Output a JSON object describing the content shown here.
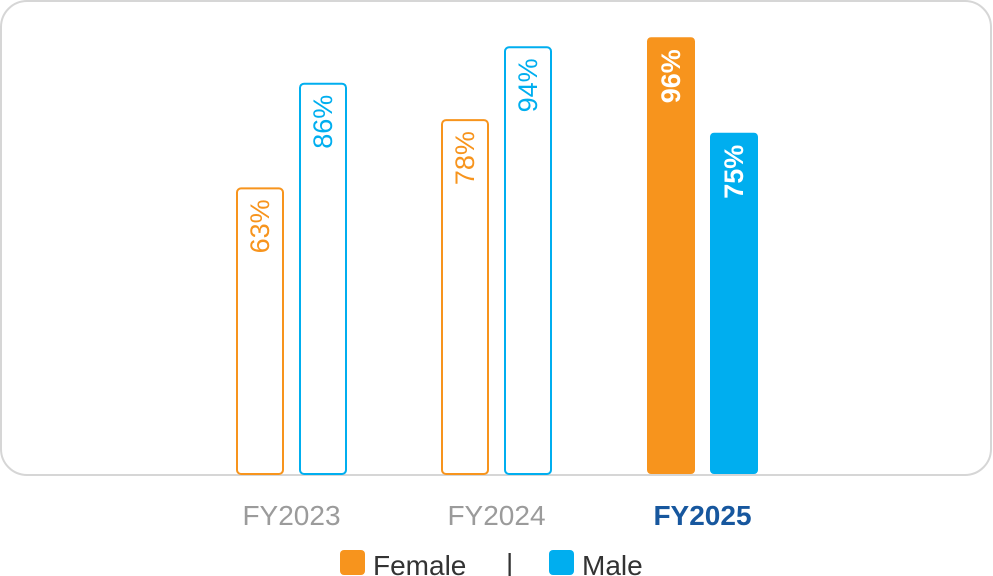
{
  "chart_data": {
    "type": "bar",
    "categories": [
      "FY2023",
      "FY2024",
      "FY2025"
    ],
    "highlight_category": "FY2025",
    "series": [
      {
        "name": "Female",
        "color": "#f7941d",
        "values": [
          63,
          78,
          96
        ],
        "labels": [
          "63%",
          "78%",
          "96%"
        ]
      },
      {
        "name": "Male",
        "color": "#00aeef",
        "values": [
          86,
          94,
          75
        ],
        "labels": [
          "86%",
          "94%",
          "75%"
        ]
      }
    ],
    "ylim": [
      0,
      100
    ],
    "grid": false,
    "legend_position": "bottom",
    "legend_separator": "|",
    "highlight_color": "#17579e"
  }
}
